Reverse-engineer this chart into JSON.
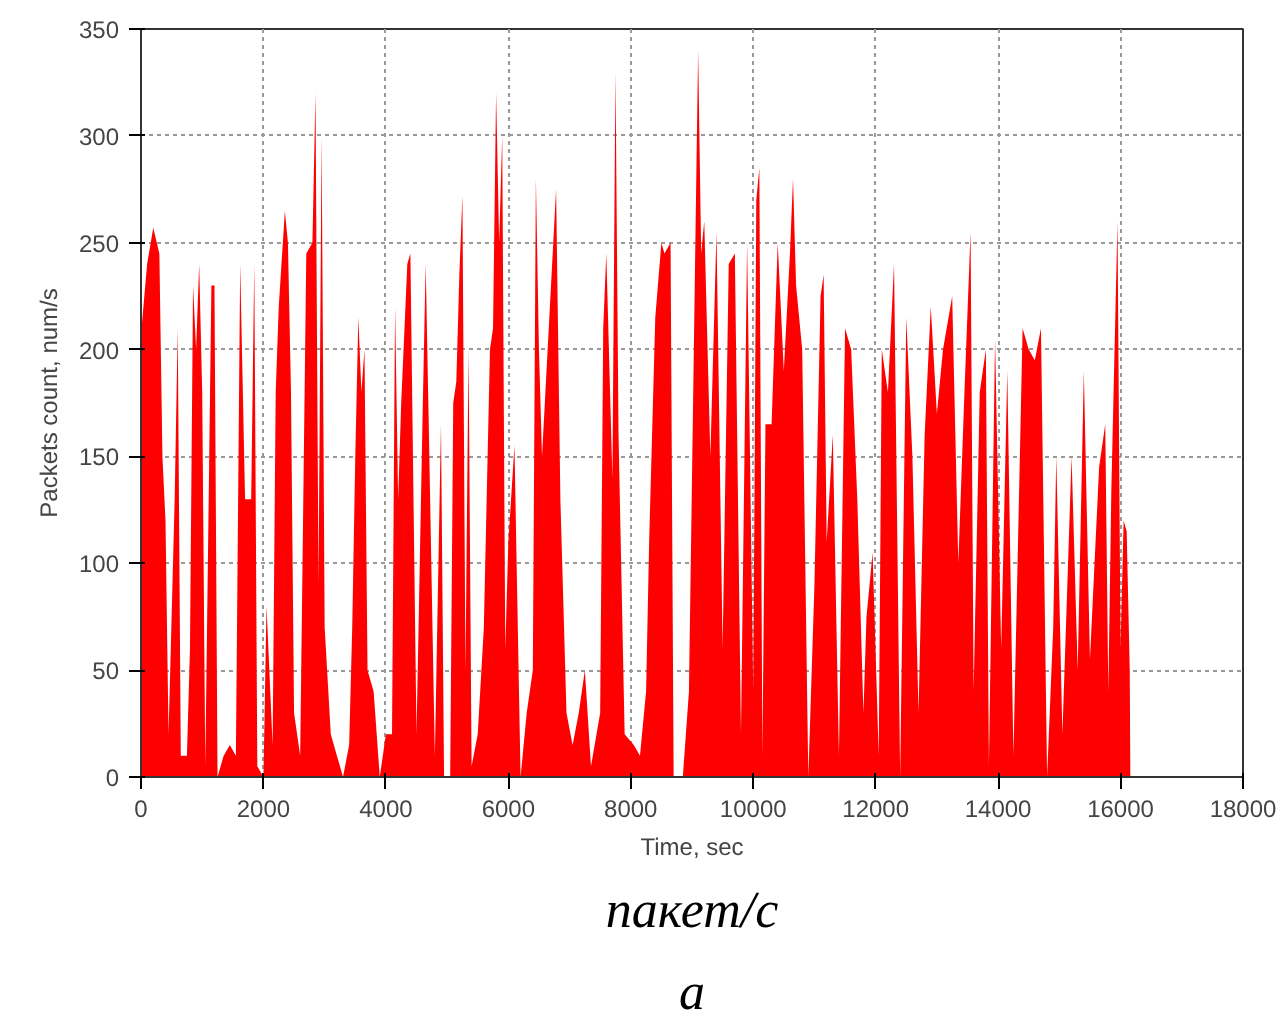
{
  "chart_data": {
    "type": "area",
    "xlabel": "Time, sec",
    "ylabel": "Packets count, num/s",
    "annotations": [
      "пакет/с",
      "а"
    ],
    "xlim": [
      0,
      18000
    ],
    "xticks": [
      0,
      2000,
      4000,
      6000,
      8000,
      10000,
      12000,
      14000,
      16000,
      18000
    ],
    "ylim": [
      0,
      350
    ],
    "yticks": [
      0,
      50,
      100,
      150,
      200,
      250,
      300,
      350
    ],
    "grid": true,
    "series": [
      {
        "color": "#ff0000",
        "x": [
          0,
          100,
          200,
          300,
          350,
          400,
          450,
          550,
          600,
          650,
          750,
          800,
          850,
          900,
          950,
          1000,
          1050,
          1150,
          1200,
          1250,
          1350,
          1450,
          1550,
          1620,
          1700,
          1800,
          1850,
          1900,
          2000,
          2050,
          2150,
          2200,
          2250,
          2350,
          2400,
          2450,
          2500,
          2600,
          2700,
          2800,
          2850,
          2900,
          2950,
          3000,
          3100,
          3200,
          3300,
          3400,
          3450,
          3500,
          3550,
          3600,
          3650,
          3700,
          3800,
          3900,
          4000,
          4100,
          4150,
          4200,
          4250,
          4350,
          4400,
          4500,
          4600,
          4650,
          4700,
          4800,
          4900,
          4950,
          5050,
          5100,
          5150,
          5200,
          5250,
          5300,
          5350,
          5400,
          5500,
          5600,
          5700,
          5750,
          5800,
          5850,
          5900,
          5950,
          6000,
          6100,
          6200,
          6300,
          6400,
          6450,
          6500,
          6550,
          6780,
          6850,
          6950,
          7050,
          7150,
          7250,
          7350,
          7500,
          7550,
          7600,
          7700,
          7750,
          7800,
          7900,
          8050,
          8150,
          8250,
          8300,
          8400,
          8500,
          8550,
          8650,
          8700,
          8850,
          8950,
          9050,
          9100,
          9150,
          9200,
          9300,
          9400,
          9500,
          9600,
          9700,
          9800,
          9900,
          10000,
          10050,
          10100,
          10150,
          10200,
          10300,
          10400,
          10500,
          10600,
          10650,
          10700,
          10800,
          10900,
          11000,
          11100,
          11150,
          11200,
          11300,
          11400,
          11500,
          11600,
          11700,
          11800,
          11850,
          11950,
          12050,
          12100,
          12200,
          12300,
          12400,
          12500,
          12600,
          12700,
          12800,
          12900,
          13000,
          13100,
          13250,
          13350,
          13450,
          13550,
          13600,
          13700,
          13800,
          13850,
          13950,
          14050,
          14150,
          14250,
          14400,
          14500,
          14600,
          14700,
          14800,
          14900,
          14950,
          15050,
          15200,
          15300,
          15400,
          15500,
          15650,
          15750,
          15800,
          15850,
          15950,
          16000,
          16050,
          16100,
          16150,
          16160
        ],
        "values": [
          207,
          240,
          257,
          245,
          150,
          120,
          20,
          130,
          210,
          10,
          10,
          60,
          230,
          200,
          240,
          180,
          5,
          230,
          230,
          0,
          10,
          15,
          10,
          240,
          130,
          130,
          240,
          5,
          0,
          80,
          15,
          180,
          220,
          265,
          250,
          180,
          30,
          10,
          245,
          250,
          320,
          90,
          300,
          70,
          20,
          10,
          0,
          15,
          70,
          150,
          215,
          180,
          200,
          50,
          40,
          0,
          20,
          20,
          220,
          130,
          175,
          240,
          245,
          20,
          170,
          240,
          165,
          10,
          165,
          0,
          0,
          175,
          185,
          235,
          272,
          50,
          200,
          5,
          20,
          70,
          200,
          210,
          320,
          250,
          300,
          60,
          110,
          155,
          0,
          30,
          50,
          280,
          200,
          150,
          275,
          130,
          30,
          15,
          30,
          50,
          5,
          30,
          210,
          245,
          140,
          330,
          160,
          20,
          15,
          10,
          40,
          110,
          215,
          250,
          245,
          250,
          0,
          0,
          40,
          240,
          340,
          245,
          260,
          150,
          255,
          60,
          240,
          245,
          20,
          250,
          40,
          270,
          285,
          10,
          165,
          165,
          250,
          190,
          245,
          280,
          230,
          200,
          0,
          90,
          225,
          235,
          110,
          160,
          10,
          210,
          200,
          130,
          30,
          75,
          105,
          10,
          200,
          180,
          240,
          0,
          215,
          150,
          30,
          160,
          220,
          170,
          200,
          225,
          100,
          180,
          255,
          40,
          180,
          200,
          5,
          205,
          60,
          190,
          10,
          210,
          200,
          195,
          210,
          0,
          70,
          150,
          20,
          150,
          50,
          190,
          55,
          145,
          165,
          40,
          135,
          260,
          60,
          120,
          115,
          50,
          0
        ]
      }
    ]
  }
}
